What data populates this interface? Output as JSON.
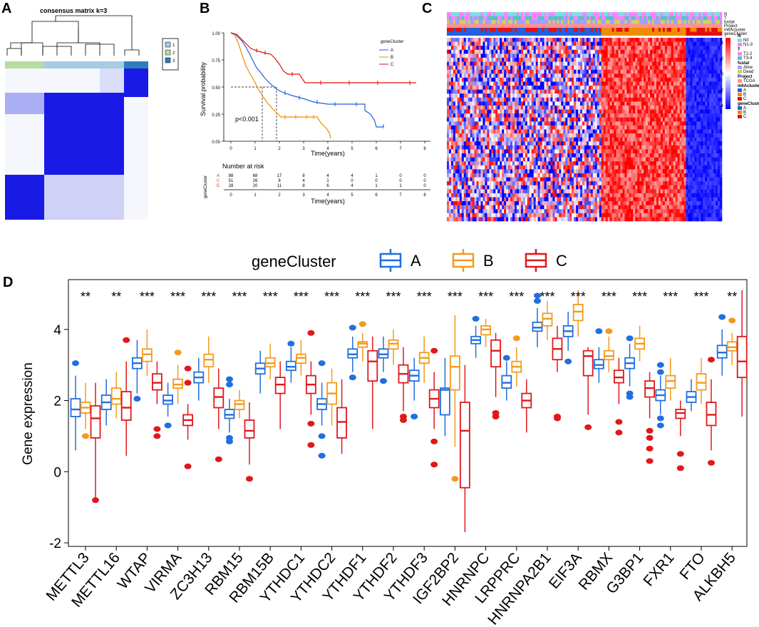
{
  "panels": {
    "A": "A",
    "B": "B",
    "C": "C",
    "D": "D"
  },
  "panelA": {
    "title": "consensus matrix k=3",
    "legend": [
      "1",
      "2",
      "3"
    ],
    "colors": {
      "1": "#b7dba0",
      "2": "#a6cbe3",
      "3": "#2c7fb8"
    }
  },
  "panelB": {
    "legend_title": "geneCluster",
    "legend": [
      "A",
      "B",
      "C"
    ],
    "ylabel": "Survival probability",
    "xlabel": "Time(years)",
    "yticks": [
      "0.00",
      "0.25",
      "0.50",
      "0.75",
      "1.00"
    ],
    "xticks": [
      "0",
      "1",
      "2",
      "3",
      "4",
      "5",
      "6",
      "7",
      "8"
    ],
    "pvalue": "p<0.001",
    "risk_title": "Number at risk",
    "risk_ylabel": "geneCluster",
    "risk_xlabel": "Time(years)",
    "risk_rows": [
      {
        "label": "A",
        "values": [
          "98",
          "68",
          "17",
          "8",
          "4",
          "4",
          "1",
          "0",
          "0"
        ]
      },
      {
        "label": "B",
        "values": [
          "51",
          "26",
          "8",
          "4",
          "1",
          "0",
          "0",
          "0",
          "0"
        ]
      },
      {
        "label": "C",
        "values": [
          "28",
          "20",
          "11",
          "8",
          "6",
          "4",
          "1",
          "1",
          "0"
        ]
      }
    ],
    "colors": {
      "A": "#1f5fe0",
      "B": "#f08c00",
      "C": "#e01010"
    }
  },
  "panelC": {
    "track_labels": [
      "N",
      "T",
      "fustat",
      "Project",
      "m6Acluster",
      "geneCluster"
    ],
    "scale_ticks": [
      "4",
      "2",
      "0",
      "-2",
      "-4"
    ],
    "legend_groups": [
      {
        "title": "N",
        "items": [
          "N0",
          "N1-3"
        ]
      },
      {
        "title": "T",
        "items": [
          "T1-2",
          "T3-4"
        ]
      },
      {
        "title": "fustat",
        "items": [
          "Alive",
          "Dead"
        ]
      },
      {
        "title": "Project",
        "items": [
          "TCGA"
        ]
      },
      {
        "title": "m6Acluster",
        "items": [
          "A",
          "B",
          "C"
        ]
      },
      {
        "title": "geneCluster",
        "items": [
          "A",
          "B",
          "C"
        ]
      }
    ]
  },
  "legend_top": {
    "title": "geneCluster",
    "items": [
      "A",
      "B",
      "C"
    ],
    "colors": [
      "#1f6fe0",
      "#f39a1c",
      "#e0181c"
    ]
  },
  "chart_data": {
    "type": "box",
    "title": "",
    "xlabel": "",
    "ylabel": "Gene expression",
    "ylim": [
      -2.1,
      5.4
    ],
    "yticks": [
      -2,
      0,
      2,
      4
    ],
    "categories": [
      "METTL3",
      "METTL16",
      "WTAP",
      "VIRMA",
      "ZC3H13",
      "RBM15",
      "RBM15B",
      "YTHDC1",
      "YTHDC2",
      "YTHDF1",
      "YTHDF2",
      "YTHDF3",
      "IGF2BP2",
      "HNRNPC",
      "LRPPRC",
      "HNRNPA2B1",
      "EIF3A",
      "RBMX",
      "G3BP1",
      "FXR1",
      "FTO",
      "ALKBH5"
    ],
    "significance": [
      "**",
      "**",
      "***",
      "***",
      "***",
      "***",
      "***",
      "***",
      "***",
      "***",
      "***",
      "***",
      "***",
      "***",
      "***",
      "***",
      "***",
      "***",
      "***",
      "***",
      "***",
      "**"
    ],
    "series": [
      {
        "name": "A",
        "color": "#1f6fe0",
        "boxes": [
          [
            0.6,
            1.55,
            1.75,
            2.05,
            2.7
          ],
          [
            1.3,
            1.75,
            1.95,
            2.15,
            2.6
          ],
          [
            2.2,
            2.9,
            3.05,
            3.2,
            3.7
          ],
          [
            1.55,
            1.9,
            2.0,
            2.15,
            2.5
          ],
          [
            2.0,
            2.5,
            2.65,
            2.8,
            3.2
          ],
          [
            1.1,
            1.5,
            1.6,
            1.75,
            2.05
          ],
          [
            2.2,
            2.75,
            2.9,
            3.05,
            3.4
          ],
          [
            2.5,
            2.85,
            2.95,
            3.1,
            3.5
          ],
          [
            1.3,
            1.75,
            1.9,
            2.05,
            2.5
          ],
          [
            2.8,
            3.2,
            3.3,
            3.45,
            3.8
          ],
          [
            2.8,
            3.2,
            3.3,
            3.45,
            3.8
          ],
          [
            2.0,
            2.55,
            2.7,
            2.85,
            3.2
          ],
          [
            1.0,
            1.6,
            2.3,
            2.35,
            3.2
          ],
          [
            3.2,
            3.6,
            3.7,
            3.8,
            4.1
          ],
          [
            2.0,
            2.35,
            2.5,
            2.7,
            3.1
          ],
          [
            3.5,
            3.95,
            4.05,
            4.2,
            4.6
          ],
          [
            3.4,
            3.8,
            3.95,
            4.1,
            4.5
          ],
          [
            2.5,
            2.9,
            3.0,
            3.15,
            3.5
          ],
          [
            2.4,
            2.9,
            3.05,
            3.2,
            3.6
          ],
          [
            1.6,
            2.0,
            2.15,
            2.3,
            2.7
          ],
          [
            1.7,
            1.95,
            2.1,
            2.25,
            2.6
          ],
          [
            2.7,
            3.2,
            3.35,
            3.55,
            4.0
          ]
        ]
      },
      {
        "name": "B",
        "color": "#f39a1c",
        "boxes": [
          [
            1.2,
            1.65,
            1.8,
            1.95,
            2.5
          ],
          [
            1.5,
            1.9,
            2.05,
            2.35,
            2.8
          ],
          [
            2.7,
            3.1,
            3.3,
            3.45,
            4.0
          ],
          [
            1.9,
            2.35,
            2.45,
            2.6,
            3.0
          ],
          [
            2.5,
            2.95,
            3.15,
            3.3,
            3.8
          ],
          [
            1.5,
            1.75,
            1.9,
            2.0,
            2.3
          ],
          [
            2.6,
            2.95,
            3.05,
            3.2,
            3.6
          ],
          [
            2.7,
            3.05,
            3.2,
            3.3,
            3.7
          ],
          [
            1.3,
            1.9,
            2.2,
            2.5,
            2.9
          ],
          [
            3.1,
            3.5,
            3.6,
            3.65,
            3.9
          ],
          [
            3.0,
            3.45,
            3.6,
            3.7,
            4.0
          ],
          [
            2.5,
            3.05,
            3.2,
            3.35,
            3.8
          ],
          [
            0.7,
            2.3,
            2.95,
            3.25,
            4.4
          ],
          [
            3.5,
            3.85,
            4.0,
            4.1,
            4.3
          ],
          [
            2.4,
            2.8,
            2.95,
            3.1,
            3.5
          ],
          [
            3.7,
            4.1,
            4.3,
            4.45,
            4.8
          ],
          [
            3.8,
            4.25,
            4.5,
            4.7,
            5.1
          ],
          [
            2.8,
            3.15,
            3.25,
            3.4,
            3.8
          ],
          [
            3.1,
            3.45,
            3.6,
            3.75,
            4.1
          ],
          [
            2.0,
            2.35,
            2.55,
            2.7,
            3.2
          ],
          [
            1.9,
            2.3,
            2.5,
            2.75,
            3.2
          ],
          [
            3.0,
            3.4,
            3.5,
            3.65,
            3.9
          ]
        ]
      },
      {
        "name": "C",
        "color": "#e0181c",
        "boxes": [
          [
            -0.8,
            0.95,
            1.5,
            1.85,
            2.5
          ],
          [
            0.45,
            1.45,
            1.8,
            2.25,
            3.1
          ],
          [
            1.9,
            2.3,
            2.5,
            2.75,
            3.1
          ],
          [
            0.9,
            1.3,
            1.45,
            1.6,
            1.9
          ],
          [
            1.2,
            1.8,
            2.1,
            2.35,
            2.9
          ],
          [
            0.2,
            0.95,
            1.15,
            1.45,
            1.95
          ],
          [
            1.2,
            2.2,
            2.45,
            2.65,
            3.1
          ],
          [
            1.6,
            2.2,
            2.45,
            2.7,
            3.1
          ],
          [
            0.5,
            0.95,
            1.4,
            1.8,
            2.6
          ],
          [
            1.2,
            2.55,
            3.1,
            3.4,
            3.8
          ],
          [
            1.7,
            2.5,
            2.75,
            3.0,
            3.5
          ],
          [
            1.2,
            1.8,
            2.05,
            2.3,
            2.8
          ],
          [
            -1.7,
            -0.45,
            1.15,
            1.95,
            3.0
          ],
          [
            2.1,
            2.95,
            3.4,
            3.7,
            3.9
          ],
          [
            1.1,
            1.8,
            2.0,
            2.2,
            2.6
          ],
          [
            2.8,
            3.15,
            3.45,
            3.75,
            4.1
          ],
          [
            1.6,
            2.7,
            3.25,
            3.4,
            3.5
          ],
          [
            1.9,
            2.5,
            2.65,
            2.85,
            3.2
          ],
          [
            1.5,
            2.1,
            2.35,
            2.55,
            2.8
          ],
          [
            1.0,
            1.5,
            1.65,
            1.75,
            2.0
          ],
          [
            0.6,
            1.3,
            1.6,
            1.95,
            2.6
          ],
          [
            1.55,
            2.65,
            3.1,
            3.8,
            5.1
          ]
        ]
      }
    ],
    "outliers": [
      {
        "gene": 0,
        "group": 0,
        "values": [
          3.05
        ]
      },
      {
        "gene": 0,
        "group": 1,
        "values": [
          1.0
        ]
      },
      {
        "gene": 0,
        "group": 2,
        "values": [
          -0.8
        ]
      },
      {
        "gene": 1,
        "group": 2,
        "values": [
          3.7
        ]
      },
      {
        "gene": 2,
        "group": 0,
        "values": [
          2.05
        ]
      },
      {
        "gene": 2,
        "group": 2,
        "values": [
          1.2,
          1.0
        ]
      },
      {
        "gene": 3,
        "group": 0,
        "values": [
          1.3
        ]
      },
      {
        "gene": 3,
        "group": 1,
        "values": [
          3.35
        ]
      },
      {
        "gene": 3,
        "group": 2,
        "values": [
          2.9,
          2.5,
          0.15
        ]
      },
      {
        "gene": 4,
        "group": 2,
        "values": [
          0.35
        ]
      },
      {
        "gene": 5,
        "group": 0,
        "values": [
          2.6,
          2.45,
          0.95,
          0.85
        ]
      },
      {
        "gene": 5,
        "group": 2,
        "values": [
          -0.2
        ]
      },
      {
        "gene": 7,
        "group": 0,
        "values": [
          3.6
        ]
      },
      {
        "gene": 7,
        "group": 2,
        "values": [
          3.9,
          1.35,
          0.75
        ]
      },
      {
        "gene": 8,
        "group": 0,
        "values": [
          3.05,
          1.0,
          0.45
        ]
      },
      {
        "gene": 9,
        "group": 0,
        "values": [
          4.05,
          2.65
        ]
      },
      {
        "gene": 9,
        "group": 1,
        "values": [
          4.15
        ]
      },
      {
        "gene": 10,
        "group": 0,
        "values": [
          2.55
        ]
      },
      {
        "gene": 10,
        "group": 2,
        "values": [
          1.55,
          1.45
        ]
      },
      {
        "gene": 11,
        "group": 0,
        "values": [
          1.55
        ]
      },
      {
        "gene": 11,
        "group": 2,
        "values": [
          3.4,
          0.85,
          0.2
        ]
      },
      {
        "gene": 12,
        "group": 1,
        "values": [
          -0.2
        ]
      },
      {
        "gene": 13,
        "group": 0,
        "values": [
          4.3
        ]
      },
      {
        "gene": 13,
        "group": 2,
        "values": [
          1.65,
          1.55
        ]
      },
      {
        "gene": 14,
        "group": 0,
        "values": [
          3.2
        ]
      },
      {
        "gene": 14,
        "group": 1,
        "values": [
          3.75
        ]
      },
      {
        "gene": 15,
        "group": 0,
        "values": [
          4.95,
          4.8
        ]
      },
      {
        "gene": 15,
        "group": 2,
        "values": [
          1.55,
          1.5
        ]
      },
      {
        "gene": 16,
        "group": 0,
        "values": [
          3.1
        ]
      },
      {
        "gene": 16,
        "group": 2,
        "values": [
          1.25
        ]
      },
      {
        "gene": 17,
        "group": 0,
        "values": [
          3.95
        ]
      },
      {
        "gene": 17,
        "group": 1,
        "values": [
          3.95
        ]
      },
      {
        "gene": 17,
        "group": 2,
        "values": [
          1.4,
          1.1
        ]
      },
      {
        "gene": 18,
        "group": 0,
        "values": [
          3.75,
          2.2,
          2.1
        ]
      },
      {
        "gene": 18,
        "group": 2,
        "values": [
          1.15,
          0.95,
          0.65,
          0.3
        ]
      },
      {
        "gene": 19,
        "group": 0,
        "values": [
          3.0,
          2.8,
          1.5,
          1.3
        ]
      },
      {
        "gene": 19,
        "group": 2,
        "values": [
          0.5,
          0.1
        ]
      },
      {
        "gene": 20,
        "group": 2,
        "values": [
          3.15,
          0.25
        ]
      },
      {
        "gene": 21,
        "group": 0,
        "values": [
          4.35
        ]
      },
      {
        "gene": 21,
        "group": 1,
        "values": [
          4.25
        ]
      }
    ]
  }
}
